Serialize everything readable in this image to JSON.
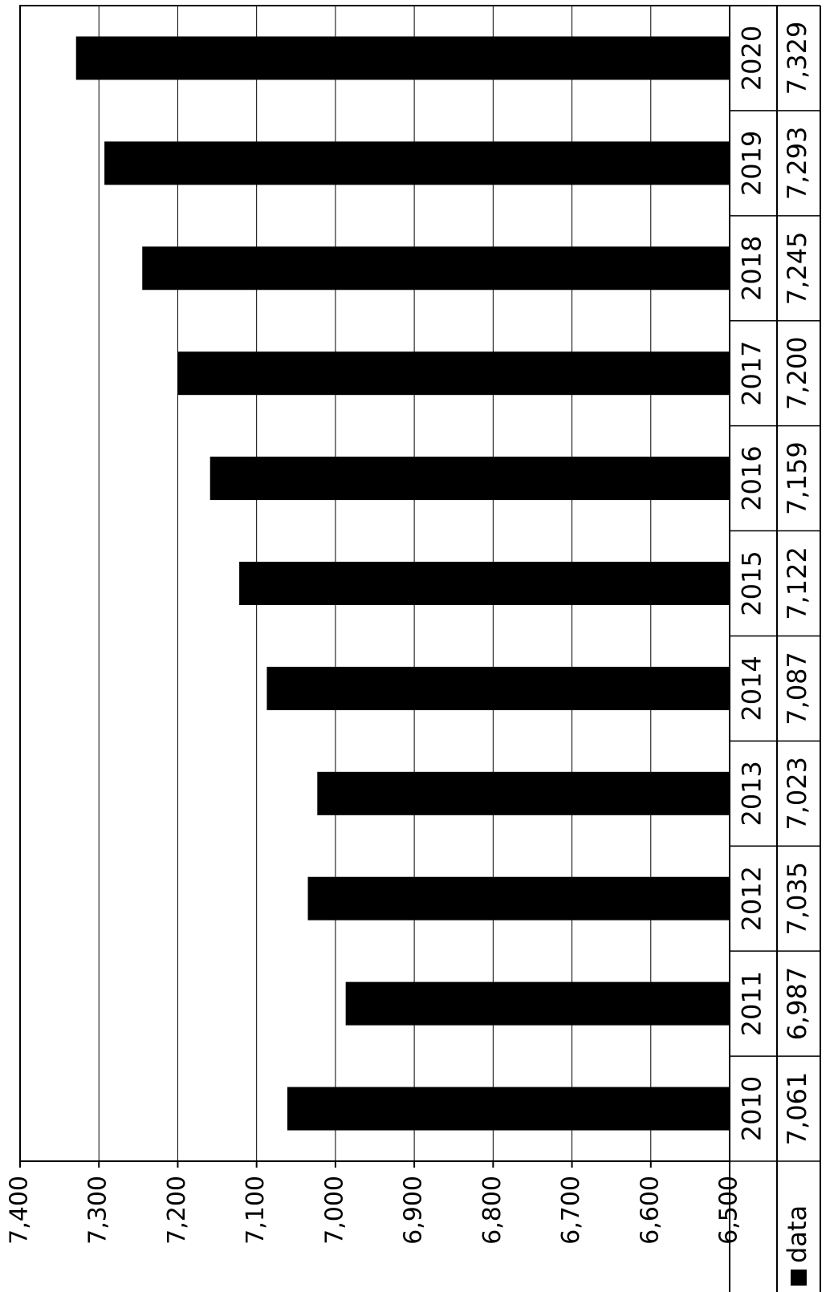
{
  "chart_data": {
    "type": "bar",
    "orientation": "rotated-90",
    "categories": [
      "2010",
      "2011",
      "2012",
      "2013",
      "2014",
      "2015",
      "2016",
      "2017",
      "2018",
      "2019",
      "2020"
    ],
    "series": [
      {
        "name": "data",
        "values": [
          7061,
          6987,
          7035,
          7023,
          7087,
          7122,
          7159,
          7200,
          7245,
          7293,
          7329
        ]
      }
    ],
    "value_labels": [
      "7,061",
      "6,987",
      "7,035",
      "7,023",
      "7,087",
      "7,122",
      "7,159",
      "7,200",
      "7,245",
      "7,293",
      "7,329"
    ],
    "ylim": [
      6500,
      7400
    ],
    "yticks": [
      6500,
      6600,
      6700,
      6800,
      6900,
      7000,
      7100,
      7200,
      7300,
      7400
    ],
    "ytick_labels": [
      "6,500",
      "6,600",
      "6,700",
      "6,800",
      "6,900",
      "7,000",
      "7,100",
      "7,200",
      "7,300",
      "7,400"
    ],
    "grid": true,
    "data_table": true,
    "legend": "data-table",
    "colors": {
      "bar": "#000000",
      "grid": "#000000",
      "background": "#ffffff"
    }
  }
}
